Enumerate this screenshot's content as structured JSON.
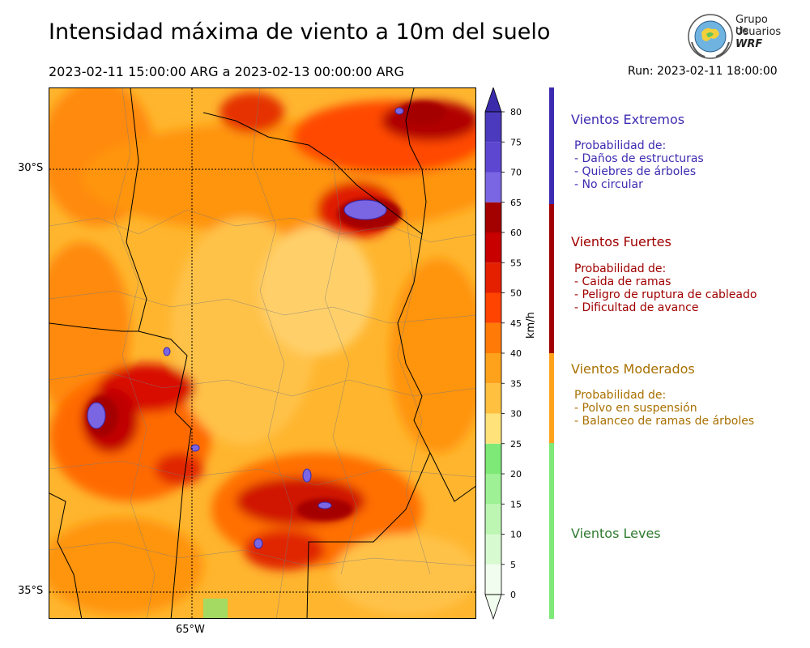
{
  "title": "Intensidad máxima de viento a 10m del suelo",
  "period": "2023-02-11 15:00:00 ARG  a  2023-02-13 00:00:00 ARG",
  "run": "Run: 2023-02-11 18:00:00",
  "logo": {
    "line1": "Grupo de",
    "line2": "Usuarios",
    "line3": "WRF"
  },
  "map": {
    "lat_labels": [
      "30°S",
      "35°S"
    ],
    "lon_labels": [
      "65°W"
    ]
  },
  "colorbar": {
    "unit": "km/h",
    "ticks": [
      "0",
      "5",
      "10",
      "15",
      "20",
      "25",
      "30",
      "35",
      "40",
      "45",
      "50",
      "55",
      "60",
      "65",
      "70",
      "75",
      "80"
    ],
    "colors": [
      "#f1fdee",
      "#d8fad1",
      "#bcf6b2",
      "#9ef194",
      "#7ee977",
      "#ffe27a",
      "#ffc040",
      "#ffa21b",
      "#ff7a06",
      "#ff4300",
      "#e52000",
      "#c80000",
      "#a30000",
      "#7a65e3",
      "#5d47d1",
      "#4b3abd",
      "#3a2bab"
    ]
  },
  "categories": [
    {
      "name": "Vientos Extremos",
      "color": "#3d2bb0",
      "lines": [
        "Probabilidad de:",
        "- Daños de estructuras",
        "- Quiebres de árboles",
        "- No circular"
      ]
    },
    {
      "name": "Vientos Fuertes",
      "color": "#a00000",
      "lines": [
        "Probabilidad de:",
        "- Caida de ramas",
        "- Peligro de ruptura de cableado",
        "- Dificultad de avance"
      ]
    },
    {
      "name": "Vientos Moderados",
      "color": "#a87000",
      "lines": [
        "Probabilidad de:",
        "- Polvo en suspensión",
        "- Balanceo de ramas de árboles"
      ]
    },
    {
      "name": "Vientos Leves",
      "color": "#2f7a2f",
      "lines": []
    }
  ]
}
